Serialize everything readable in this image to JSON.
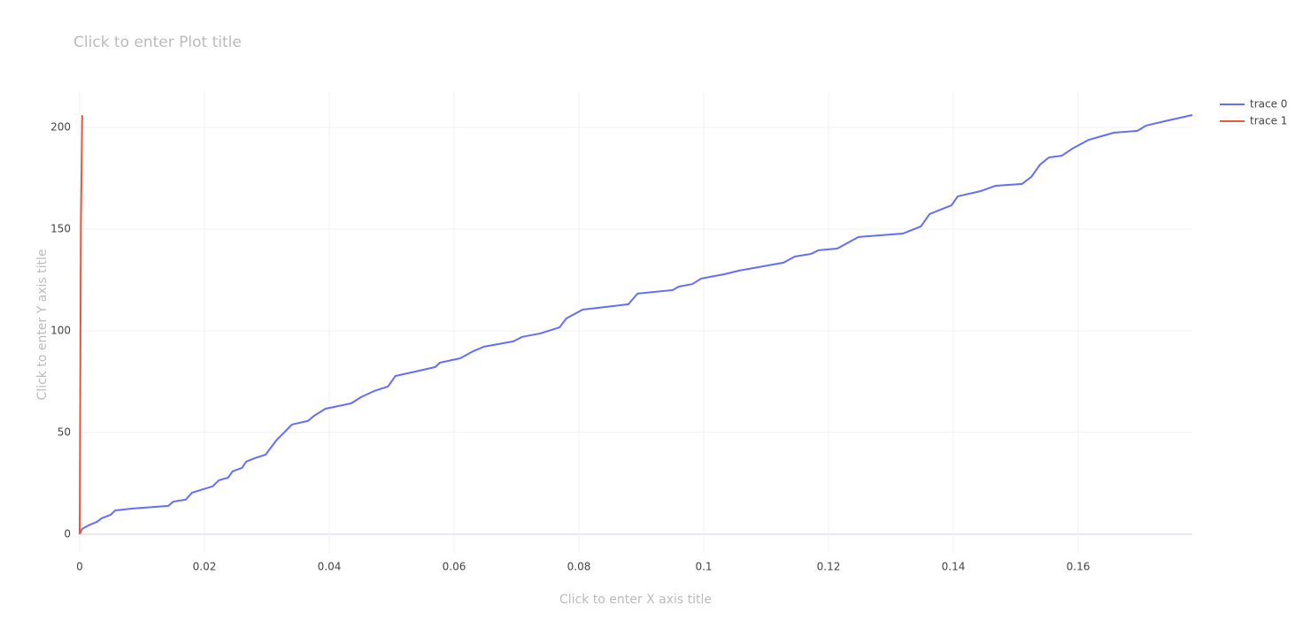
{
  "chart_data": {
    "type": "line",
    "title": "Click to enter Plot title",
    "x_title": "Click to enter X axis title",
    "y_title": "Click to enter Y axis title",
    "grid": true,
    "xlim": [
      0,
      0.1783
    ],
    "ylim": [
      -9.2,
      217.4
    ],
    "xticks": [
      0,
      0.02,
      0.04,
      0.06,
      0.08,
      0.1,
      0.12,
      0.14,
      0.16
    ],
    "yticks": [
      0,
      50,
      100,
      150,
      200
    ],
    "series": [
      {
        "name": "trace 0",
        "color": "#636efa",
        "x": [
          0,
          0.0004,
          0.0014,
          0.0028,
          0.0035,
          0.005,
          0.0057,
          0.0085,
          0.0142,
          0.015,
          0.017,
          0.018,
          0.0199,
          0.0213,
          0.0223,
          0.0238,
          0.0245,
          0.026,
          0.0267,
          0.0281,
          0.0298,
          0.0315,
          0.0329,
          0.034,
          0.0366,
          0.0376,
          0.0394,
          0.0435,
          0.0451,
          0.0472,
          0.0494,
          0.0506,
          0.0539,
          0.057,
          0.0577,
          0.061,
          0.0631,
          0.0648,
          0.0695,
          0.0709,
          0.0738,
          0.0769,
          0.078,
          0.0806,
          0.0879,
          0.0894,
          0.095,
          0.096,
          0.0982,
          0.0996,
          0.1033,
          0.1057,
          0.1128,
          0.1146,
          0.1172,
          0.1184,
          0.1214,
          0.1248,
          0.1319,
          0.1348,
          0.1362,
          0.1397,
          0.1407,
          0.1444,
          0.1468,
          0.151,
          0.1525,
          0.1539,
          0.1553,
          0.1574,
          0.1591,
          0.1617,
          0.1638,
          0.1657,
          0.1695,
          0.1709,
          0.1738,
          0.1783
        ],
        "values": [
          0,
          2.6,
          4.3,
          6.1,
          7.8,
          9.6,
          11.7,
          12.6,
          13.9,
          16,
          17,
          20.4,
          22.2,
          23.5,
          26.5,
          27.8,
          30.9,
          32.6,
          35.7,
          37.4,
          39.1,
          46.1,
          50.4,
          53.9,
          55.7,
          58.3,
          61.7,
          64.3,
          67.4,
          70.4,
          72.6,
          77.8,
          80,
          82.2,
          84.3,
          86.5,
          90,
          92.2,
          94.8,
          97,
          98.7,
          101.7,
          106.1,
          110.4,
          113,
          118.3,
          120,
          121.7,
          123,
          125.7,
          127.8,
          129.6,
          133.5,
          136.5,
          137.8,
          139.6,
          140.4,
          146.1,
          147.8,
          151.3,
          157.4,
          161.7,
          166.1,
          168.7,
          171.3,
          172.2,
          175.7,
          181.7,
          185.2,
          186.1,
          189.6,
          193.9,
          195.7,
          197.4,
          198.3,
          200.9,
          203,
          206.1
        ]
      },
      {
        "name": "trace 1",
        "color": "#EF553B",
        "x": [
          0,
          0.0002,
          0.0004
        ],
        "values": [
          0,
          152,
          206
        ]
      }
    ]
  }
}
